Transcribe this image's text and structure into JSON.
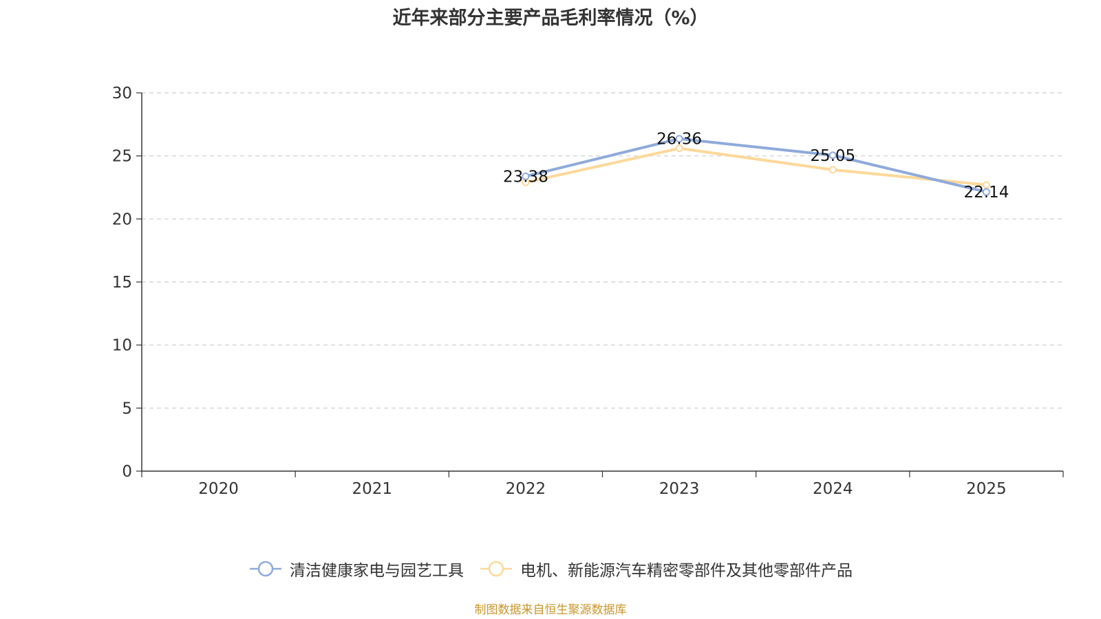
{
  "chart_data": {
    "type": "line",
    "title": "近年来部分主要产品毛利率情况（%）",
    "categories": [
      "2020",
      "2021",
      "2022",
      "2023",
      "2024",
      "2025"
    ],
    "ylim": [
      0,
      30
    ],
    "yticks": [
      0,
      5,
      10,
      15,
      20,
      25,
      30
    ],
    "grid": true,
    "legend_position": "bottom",
    "series": [
      {
        "name": "清洁健康家电与园艺工具",
        "color": "#8eaadb",
        "values": [
          null,
          null,
          23.38,
          26.36,
          25.05,
          22.14
        ],
        "labels": [
          null,
          null,
          "23.38",
          "26.36",
          "25.05",
          "22.14"
        ]
      },
      {
        "name": "电机、新能源汽车精密零部件及其他零部件产品",
        "color": "#fdd89a",
        "values": [
          null,
          null,
          22.9,
          25.6,
          23.9,
          22.7
        ],
        "labels": [
          null,
          null,
          null,
          null,
          null,
          null
        ]
      }
    ],
    "source": "制图数据来自恒生聚源数据库"
  }
}
